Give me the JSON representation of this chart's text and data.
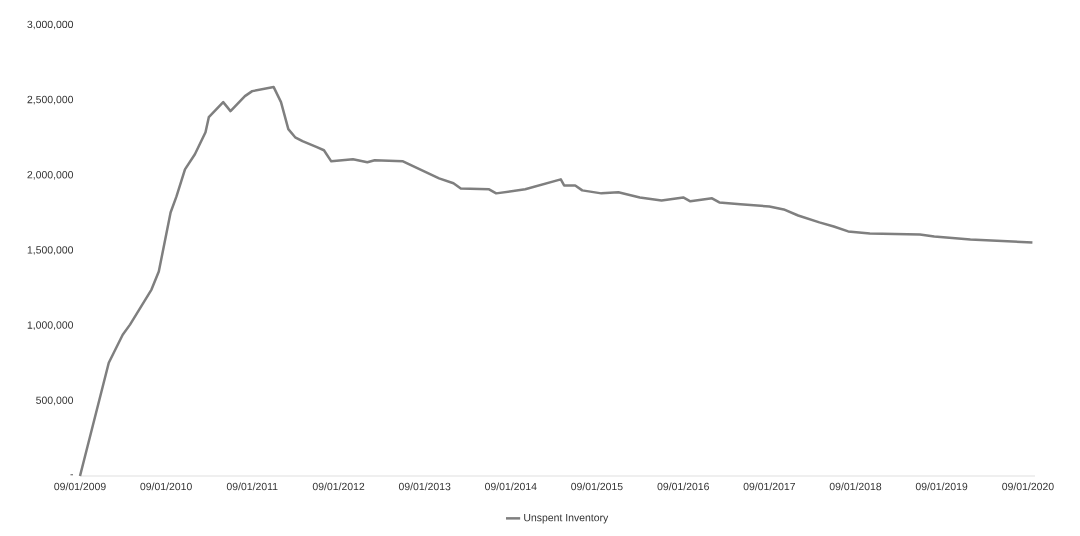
{
  "chart_data": {
    "type": "line",
    "x": [
      "2009-09-01",
      "2010-01-01",
      "2010-03-01",
      "2010-04-01",
      "2010-07-01",
      "2010-08-01",
      "2010-09-20",
      "2010-10-15",
      "2010-11-20",
      "2011-01-01",
      "2011-02-15",
      "2011-03-01",
      "2011-05-01",
      "2011-06-01",
      "2011-08-01",
      "2011-09-01",
      "2011-12-01",
      "2012-01-01",
      "2012-02-01",
      "2012-03-01",
      "2012-04-01",
      "2012-06-01",
      "2012-07-01",
      "2012-08-01",
      "2012-11-01",
      "2013-01-01",
      "2013-02-01",
      "2013-06-01",
      "2013-11-01",
      "2014-01-01",
      "2014-02-01",
      "2014-06-01",
      "2014-07-01",
      "2014-11-01",
      "2015-04-01",
      "2015-04-15",
      "2015-06-01",
      "2015-07-01",
      "2015-09-20",
      "2015-12-01",
      "2016-03-01",
      "2016-06-01",
      "2016-09-01",
      "2016-10-01",
      "2017-01-01",
      "2017-02-01",
      "2017-05-01",
      "2017-09-01",
      "2017-11-01",
      "2018-01-01",
      "2018-04-01",
      "2018-06-01",
      "2018-08-01",
      "2018-11-01",
      "2019-06-01",
      "2019-08-01",
      "2020-01-01",
      "2020-09-20"
    ],
    "series": [
      {
        "name": "Unspent Inventory",
        "color": "#7f7f7f",
        "values": [
          0,
          753000,
          940000,
          1007000,
          1240000,
          1360000,
          1753000,
          1860000,
          2040000,
          2140000,
          2287000,
          2387000,
          2487000,
          2427000,
          2527000,
          2560000,
          2587000,
          2487000,
          2307000,
          2253000,
          2227000,
          2187000,
          2167000,
          2093000,
          2107000,
          2087000,
          2100000,
          2093000,
          1980000,
          1947000,
          1913000,
          1907000,
          1880000,
          1907000,
          1973000,
          1933000,
          1933000,
          1900000,
          1880000,
          1887000,
          1853000,
          1833000,
          1853000,
          1827000,
          1847000,
          1820000,
          1807000,
          1793000,
          1773000,
          1733000,
          1687000,
          1660000,
          1627000,
          1613000,
          1607000,
          1593000,
          1573000,
          1553000
        ]
      }
    ],
    "xlim": [
      "2009-09-01",
      "2020-10-01"
    ],
    "xticks": [
      {
        "value": "2009-09-01",
        "label": "09/01/2009"
      },
      {
        "value": "2010-09-01",
        "label": "09/01/2010"
      },
      {
        "value": "2011-09-01",
        "label": "09/01/2011"
      },
      {
        "value": "2012-09-01",
        "label": "09/01/2012"
      },
      {
        "value": "2013-09-01",
        "label": "09/01/2013"
      },
      {
        "value": "2014-09-01",
        "label": "09/01/2014"
      },
      {
        "value": "2015-09-01",
        "label": "09/01/2015"
      },
      {
        "value": "2016-09-01",
        "label": "09/01/2016"
      },
      {
        "value": "2017-09-01",
        "label": "09/01/2017"
      },
      {
        "value": "2018-09-01",
        "label": "09/01/2018"
      },
      {
        "value": "2019-09-01",
        "label": "09/01/2019"
      },
      {
        "value": "2020-09-01",
        "label": "09/01/2020"
      }
    ],
    "ylim": [
      0,
      3000000
    ],
    "yticks": [
      {
        "value": 0,
        "label": "-"
      },
      {
        "value": 500000,
        "label": "500,000"
      },
      {
        "value": 1000000,
        "label": "1,000,000"
      },
      {
        "value": 1500000,
        "label": "1,500,000"
      },
      {
        "value": 2000000,
        "label": "2,000,000"
      },
      {
        "value": 2500000,
        "label": "2,500,000"
      },
      {
        "value": 3000000,
        "label": "3,000,000"
      }
    ],
    "legend": "bottom",
    "marker": "none",
    "line_style": "solid"
  }
}
